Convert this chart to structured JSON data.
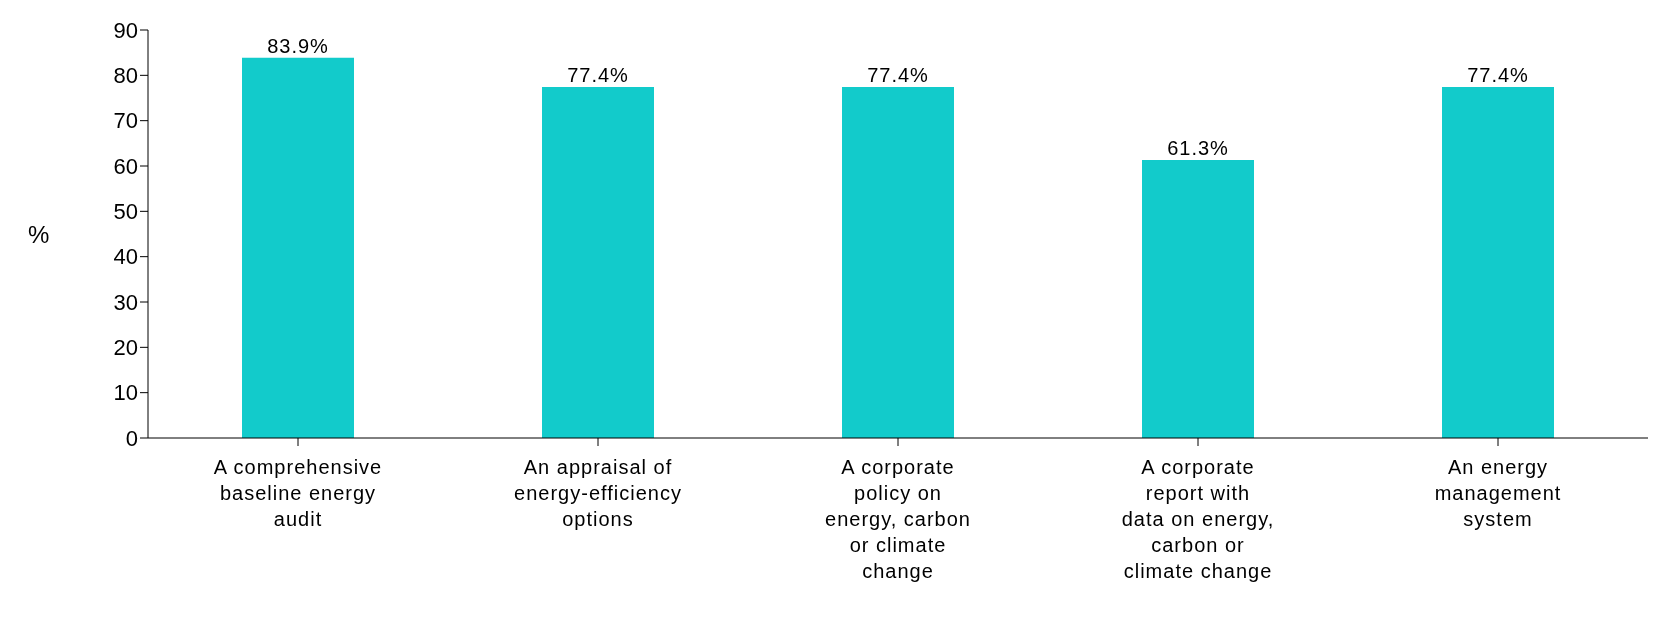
{
  "chart_data": {
    "type": "bar",
    "ylabel": "%",
    "categories": [
      "A comprehensive baseline energy audit",
      "An appraisal of energy-efficiency options",
      "A corporate policy on energy, carbon or climate change",
      "A corporate report with data on energy, carbon or climate change",
      "An energy management system"
    ],
    "values": [
      83.9,
      77.4,
      77.4,
      61.3,
      77.4
    ],
    "value_labels": [
      "83.9%",
      "77.4%",
      "77.4%",
      "61.3%",
      "77.4%"
    ],
    "color": "#12cbcb",
    "ylim": [
      0,
      90
    ],
    "yticks": [
      0,
      10,
      20,
      30,
      40,
      50,
      60,
      70,
      80,
      90
    ],
    "grid": false,
    "legend": false
  }
}
